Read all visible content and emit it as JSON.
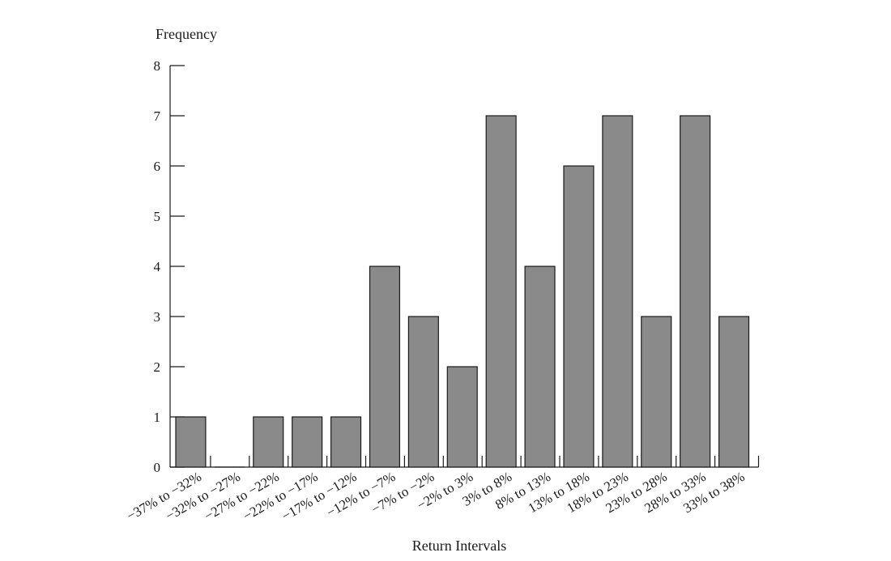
{
  "chart_data": {
    "type": "bar",
    "ylabel": "Frequency",
    "xlabel": "Return Intervals",
    "ylim": [
      0,
      8
    ],
    "yticks": [
      0,
      1,
      2,
      3,
      4,
      5,
      6,
      7,
      8
    ],
    "categories": [
      "−37% to −32%",
      "−32% to −27%",
      "−27% to −22%",
      "−22% to −17%",
      "−17% to −12%",
      "−12% to −7%",
      "−7% to −2%",
      "−2% to 3%",
      "3% to 8%",
      "8% to 13%",
      "13% to 18%",
      "18% to 23%",
      "23% to 28%",
      "28% to 33%",
      "33% to 38%"
    ],
    "values": [
      1,
      0,
      1,
      1,
      1,
      4,
      3,
      2,
      7,
      4,
      6,
      7,
      3,
      7,
      3
    ],
    "grid": false,
    "bar_color": "#8a8a8a"
  }
}
